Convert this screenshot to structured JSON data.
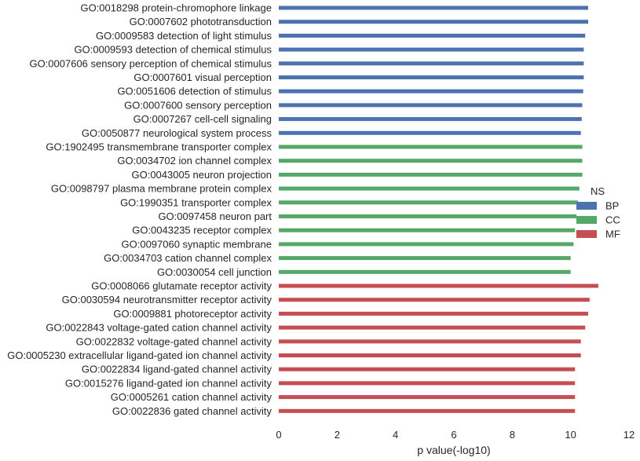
{
  "chart_data": {
    "type": "bar",
    "orientation": "horizontal",
    "xlabel": "p value(-log10)",
    "xlim": [
      0,
      12
    ],
    "xticks": [
      "0",
      "2",
      "4",
      "6",
      "8",
      "10",
      "12"
    ],
    "grid": false,
    "legend": {
      "title": "NS",
      "placement": "right",
      "entries": [
        {
          "name": "BP",
          "color": "#4C72B0"
        },
        {
          "name": "CC",
          "color": "#55A868"
        },
        {
          "name": "MF",
          "color": "#C44E52"
        }
      ]
    },
    "bars": [
      {
        "label": "GO:0018298 protein-chromophore linkage",
        "value": 10.6,
        "group": "BP"
      },
      {
        "label": "GO:0007602 phototransduction",
        "value": 10.6,
        "group": "BP"
      },
      {
        "label": "GO:0009583 detection of light stimulus",
        "value": 10.5,
        "group": "BP"
      },
      {
        "label": "GO:0009593 detection of chemical stimulus",
        "value": 10.45,
        "group": "BP"
      },
      {
        "label": "GO:0007606 sensory perception of chemical stimulus",
        "value": 10.45,
        "group": "BP"
      },
      {
        "label": "GO:0007601 visual perception",
        "value": 10.45,
        "group": "BP"
      },
      {
        "label": "GO:0051606 detection of stimulus",
        "value": 10.43,
        "group": "BP"
      },
      {
        "label": "GO:0007600 sensory perception",
        "value": 10.4,
        "group": "BP"
      },
      {
        "label": "GO:0007267 cell-cell signaling",
        "value": 10.38,
        "group": "BP"
      },
      {
        "label": "GO:0050877 neurological system process",
        "value": 10.35,
        "group": "BP"
      },
      {
        "label": "GO:1902495 transmembrane transporter complex",
        "value": 10.4,
        "group": "CC"
      },
      {
        "label": "GO:0034702 ion channel complex",
        "value": 10.4,
        "group": "CC"
      },
      {
        "label": "GO:0043005 neuron projection",
        "value": 10.4,
        "group": "CC"
      },
      {
        "label": "GO:0098797 plasma membrane protein complex",
        "value": 10.3,
        "group": "CC"
      },
      {
        "label": "GO:1990351 transporter complex",
        "value": 10.25,
        "group": "CC"
      },
      {
        "label": "GO:0097458 neuron part",
        "value": 10.2,
        "group": "CC"
      },
      {
        "label": "GO:0043235 receptor complex",
        "value": 10.15,
        "group": "CC"
      },
      {
        "label": "GO:0097060 synaptic membrane",
        "value": 10.1,
        "group": "CC"
      },
      {
        "label": "GO:0034703 cation channel complex",
        "value": 10.0,
        "group": "CC"
      },
      {
        "label": "GO:0030054 cell junction",
        "value": 10.0,
        "group": "CC"
      },
      {
        "label": "GO:0008066 glutamate receptor activity",
        "value": 10.95,
        "group": "MF"
      },
      {
        "label": "GO:0030594 neurotransmitter receptor activity",
        "value": 10.65,
        "group": "MF"
      },
      {
        "label": "GO:0009881 photoreceptor activity",
        "value": 10.6,
        "group": "MF"
      },
      {
        "label": "GO:0022843 voltage-gated cation channel activity",
        "value": 10.5,
        "group": "MF"
      },
      {
        "label": "GO:0022832 voltage-gated channel activity",
        "value": 10.35,
        "group": "MF"
      },
      {
        "label": "GO:0005230 extracellular ligand-gated ion channel activity",
        "value": 10.35,
        "group": "MF"
      },
      {
        "label": "GO:0022834 ligand-gated channel activity",
        "value": 10.15,
        "group": "MF"
      },
      {
        "label": "GO:0015276 ligand-gated ion channel activity",
        "value": 10.15,
        "group": "MF"
      },
      {
        "label": "GO:0005261 cation channel activity",
        "value": 10.15,
        "group": "MF"
      },
      {
        "label": "GO:0022836 gated channel activity",
        "value": 10.15,
        "group": "MF"
      }
    ]
  }
}
